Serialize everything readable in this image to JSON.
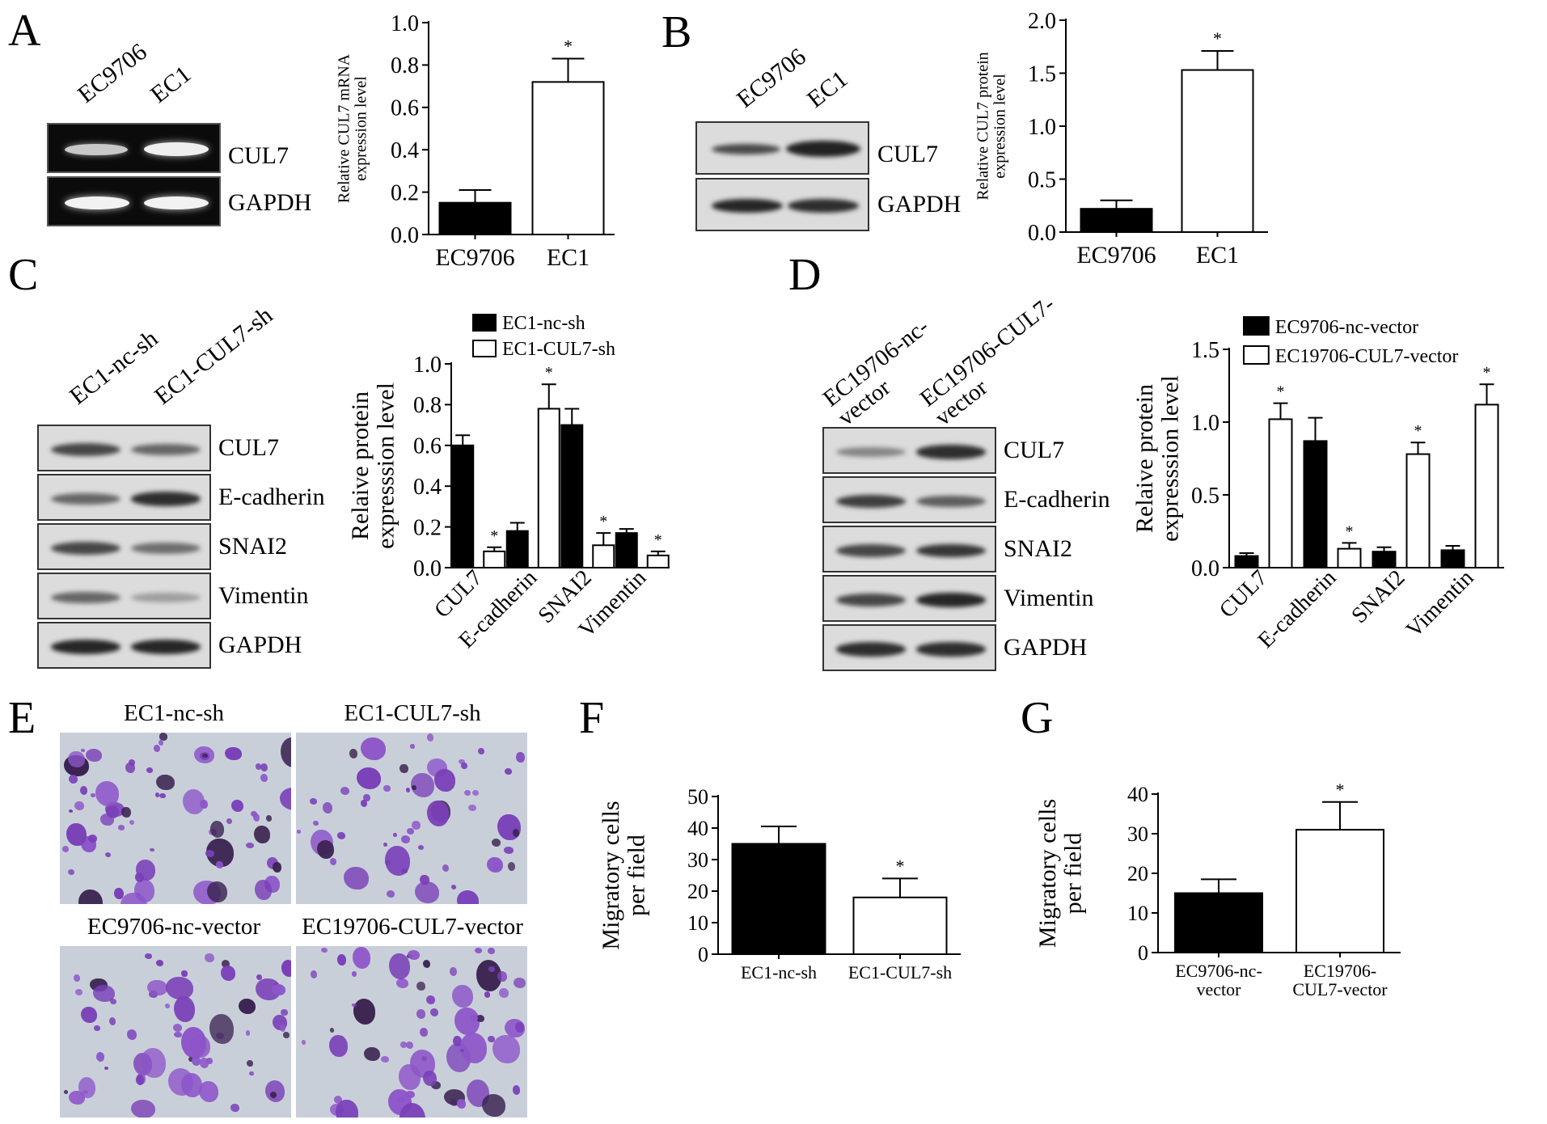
{
  "panels": {
    "A": {
      "letter": "A",
      "blot": {
        "lanes": [
          "EC9706",
          "EC1"
        ],
        "rows": [
          "CUL7",
          "GAPDH"
        ]
      }
    },
    "B": {
      "letter": "B",
      "blot": {
        "lanes": [
          "EC9706",
          "EC1"
        ],
        "rows": [
          "CUL7",
          "GAPDH"
        ]
      }
    },
    "C": {
      "letter": "C",
      "blot": {
        "lanes": [
          "EC1-nc-sh",
          "EC1-CUL7-sh"
        ],
        "rows": [
          "CUL7",
          "E-cadherin",
          "SNAI2",
          "Vimentin",
          "GAPDH"
        ]
      }
    },
    "D": {
      "letter": "D",
      "blot": {
        "lanes": [
          "EC19706-nc-\nvector",
          "EC19706-CUL7-\nvector"
        ],
        "rows": [
          "CUL7",
          "E-cadherin",
          "SNAI2",
          "Vimentin",
          "GAPDH"
        ]
      }
    },
    "E": {
      "letter": "E",
      "images": [
        "EC1-nc-sh",
        "EC1-CUL7-sh",
        "EC9706-nc-vector",
        "EC19706-CUL7-vector"
      ]
    },
    "F": {
      "letter": "F"
    },
    "G": {
      "letter": "G"
    }
  },
  "colors": {
    "black_bar": "#000000",
    "white_bar": "#ffffff",
    "stain": "#7a3fb8",
    "micro_bg": "#c9cfd9"
  },
  "chart_data": [
    {
      "id": "A",
      "type": "bar",
      "categories": [
        "EC9706",
        "EC1"
      ],
      "values": [
        0.15,
        0.72
      ],
      "errors": [
        0.06,
        0.11
      ],
      "fills": [
        "black",
        "white"
      ],
      "significant": [
        false,
        true
      ],
      "star": "*",
      "ylabel": "Relative CUL7 mRNA\nexpression level",
      "ylim": [
        0,
        1.0
      ],
      "yticks": [
        "0.0",
        "0.2",
        "0.4",
        "0.6",
        "0.8",
        "1.0"
      ]
    },
    {
      "id": "B",
      "type": "bar",
      "categories": [
        "EC9706",
        "EC1"
      ],
      "values": [
        0.22,
        1.53
      ],
      "errors": [
        0.08,
        0.18
      ],
      "fills": [
        "black",
        "white"
      ],
      "significant": [
        false,
        true
      ],
      "star": "*",
      "ylabel": "Relative CUL7 protein\nexpression level",
      "ylim": [
        0,
        2.0
      ],
      "yticks": [
        "0.0",
        "0.5",
        "1.0",
        "1.5",
        "2.0"
      ]
    },
    {
      "id": "C",
      "type": "bar",
      "categories": [
        "CUL7",
        "E-cadherin",
        "SNAI2",
        "Vimentin"
      ],
      "series": [
        {
          "name": "EC1-nc-sh",
          "fill": "black",
          "values": [
            0.6,
            0.18,
            0.7,
            0.17
          ],
          "errors": [
            0.05,
            0.04,
            0.08,
            0.02
          ],
          "significant": [
            false,
            false,
            false,
            false
          ]
        },
        {
          "name": "EC1-CUL7-sh",
          "fill": "white",
          "values": [
            0.08,
            0.78,
            0.11,
            0.06
          ],
          "errors": [
            0.02,
            0.12,
            0.06,
            0.02
          ],
          "significant": [
            true,
            true,
            true,
            true
          ]
        }
      ],
      "star": "*",
      "ylabel": "Relaive protein\nexpresssion level",
      "ylim": [
        0,
        1.0
      ],
      "yticks": [
        "0.0",
        "0.2",
        "0.4",
        "0.6",
        "0.8",
        "1.0"
      ],
      "legend_position": "top"
    },
    {
      "id": "D",
      "type": "bar",
      "categories": [
        "CUL7",
        "E-cadherin",
        "SNAI2",
        "Vimentin"
      ],
      "series": [
        {
          "name": "EC9706-nc-vector",
          "fill": "black",
          "values": [
            0.08,
            0.87,
            0.11,
            0.12
          ],
          "errors": [
            0.02,
            0.16,
            0.03,
            0.03
          ],
          "significant": [
            false,
            false,
            false,
            false
          ]
        },
        {
          "name": "EC19706-CUL7-vector",
          "fill": "white",
          "values": [
            1.02,
            0.13,
            0.78,
            1.12
          ],
          "errors": [
            0.11,
            0.04,
            0.08,
            0.14
          ],
          "significant": [
            true,
            true,
            true,
            true
          ]
        }
      ],
      "star": "*",
      "ylabel": "Relaive protein\nexpresssion level",
      "ylim": [
        0,
        1.5
      ],
      "yticks": [
        "0.0",
        "0.5",
        "1.0",
        "1.5"
      ],
      "legend_position": "top"
    },
    {
      "id": "F",
      "type": "bar",
      "categories": [
        "EC1-nc-sh",
        "EC1-CUL7-sh"
      ],
      "values": [
        35,
        18
      ],
      "errors": [
        5.5,
        6
      ],
      "fills": [
        "black",
        "white"
      ],
      "significant": [
        false,
        true
      ],
      "star": "*",
      "ylabel": "Migratory cells\nper field",
      "ylim": [
        0,
        50
      ],
      "yticks": [
        "0",
        "10",
        "20",
        "30",
        "40",
        "50"
      ]
    },
    {
      "id": "G",
      "type": "bar",
      "categories": [
        "EC9706-nc-\nvector",
        "EC19706-\nCUL7-vector"
      ],
      "values": [
        15,
        31
      ],
      "errors": [
        3.5,
        7
      ],
      "fills": [
        "black",
        "white"
      ],
      "significant": [
        false,
        true
      ],
      "star": "*",
      "ylabel": "Migratory cells\nper field",
      "ylim": [
        0,
        40
      ],
      "yticks": [
        "0",
        "10",
        "20",
        "30",
        "40"
      ]
    }
  ]
}
